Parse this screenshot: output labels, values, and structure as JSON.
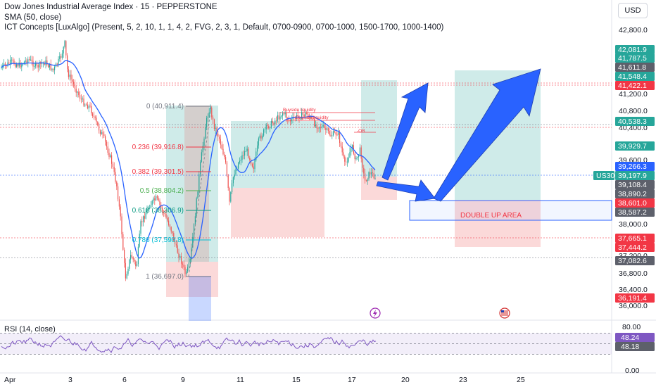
{
  "header": {
    "title": "Dow Jones Industrial Average Index · 15 · PEPPERSTONE",
    "sma": "SMA (50, close)",
    "ict": "ICT Concepts [LuxAlgo] (Present, 5, 2, 10, 1, 1, 4, 2, FVG, 2, 3, 1, Default, 0700-0900, 0700-1000, 1500-1700, 1000-1400)",
    "currency": "USD"
  },
  "rsi_label": "RSI (14, close)",
  "price_axis": {
    "ticks": [
      "42,800.0",
      "41,200.0",
      "40,800.0",
      "40,400.0",
      "39,600.0",
      "38,000.0",
      "37,200.0",
      "36,800.0",
      "36,400.0",
      "36,000.0"
    ],
    "tags": [
      {
        "text": "42,081.9",
        "color": "#26a69a"
      },
      {
        "text": "41,787.5",
        "color": "#26a69a"
      },
      {
        "text": "41,611.8",
        "color": "#5d606b"
      },
      {
        "text": "41,548.4",
        "color": "#26a69a"
      },
      {
        "text": "41,422.1",
        "color": "#f23645"
      },
      {
        "text": "40,538.3",
        "color": "#26a69a"
      },
      {
        "text": "39,929.7",
        "color": "#26a69a"
      },
      {
        "text": "39,266.3",
        "color": "#2962ff"
      },
      {
        "text": "39,197.9",
        "color": "#26a69a"
      },
      {
        "text": "39,108.4",
        "color": "#5d606b"
      },
      {
        "text": "38,890.2",
        "color": "#5d606b"
      },
      {
        "text": "38,601.0",
        "color": "#f23645"
      },
      {
        "text": "38,587.2",
        "color": "#5d606b"
      },
      {
        "text": "37,665.1",
        "color": "#f23645"
      },
      {
        "text": "37,444.2",
        "color": "#f23645"
      },
      {
        "text": "37,082.6",
        "color": "#5d606b"
      },
      {
        "text": "36,191.4",
        "color": "#f23645"
      }
    ],
    "symbol_tag": "US30"
  },
  "rsi_axis": {
    "ticks": [
      "80.00",
      "0.00"
    ],
    "tags": [
      {
        "text": "48.24",
        "color": "#7e57c2"
      },
      {
        "text": "48.18",
        "color": "#5d606b"
      }
    ]
  },
  "time_axis": [
    "Apr",
    "3",
    "6",
    "9",
    "11",
    "15",
    "17",
    "20",
    "23",
    "25"
  ],
  "fib_levels": [
    {
      "label": "0 (40,911.4)",
      "color": "#787b86"
    },
    {
      "label": "0.236 (39,916.8)",
      "color": "#f23645"
    },
    {
      "label": "0.382 (39,301.5)",
      "color": "#f23645"
    },
    {
      "label": "0.5 (38,804.2)",
      "color": "#4caf50"
    },
    {
      "label": "0.618 (38,306.9)",
      "color": "#089981"
    },
    {
      "label": "0.786 (37,598.8)",
      "color": "#00bcd4"
    },
    {
      "label": "1 (36,697.0)",
      "color": "#787b86"
    }
  ],
  "annotations": {
    "buyside_1": "Buyside liquidity",
    "buyside_2": "Buyside liquidity",
    "ob": "-OB",
    "double_up": "DOUBLE UP AREA"
  },
  "colors": {
    "up": "#26a69a",
    "down": "#ef5350",
    "sma": "#2962ff",
    "rsi": "#7e57c2",
    "arrow": "#2962ff"
  }
}
